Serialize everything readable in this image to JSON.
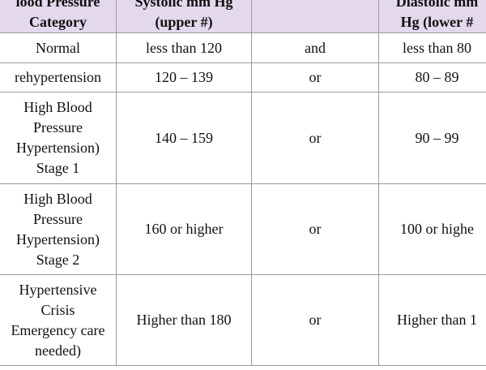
{
  "table": {
    "header": [
      [
        "lood Pressure",
        "Category"
      ],
      [
        "Systolic mm Hg",
        "(upper #)"
      ],
      [],
      [
        "Diastolic mm",
        "Hg (lower #"
      ]
    ],
    "rows": [
      [
        [
          "Normal"
        ],
        [
          "less than 120"
        ],
        [
          "and"
        ],
        [
          "less than 80"
        ]
      ],
      [
        [
          "rehypertension"
        ],
        [
          "120 – 139"
        ],
        [
          "or"
        ],
        [
          "80 – 89"
        ]
      ],
      [
        [
          "High Blood",
          "Pressure",
          "Hypertension)",
          "Stage 1"
        ],
        [
          "140 – 159"
        ],
        [
          "or"
        ],
        [
          "90 – 99"
        ]
      ],
      [
        [
          "High Blood",
          "Pressure",
          "Hypertension)",
          "Stage 2"
        ],
        [
          "160 or higher"
        ],
        [
          "or"
        ],
        [
          "100 or highe"
        ]
      ],
      [
        [
          "Hypertensive",
          "Crisis",
          "Emergency care",
          "needed)"
        ],
        [
          "Higher than 180"
        ],
        [
          "or"
        ],
        [
          "Higher than 1"
        ]
      ]
    ]
  }
}
